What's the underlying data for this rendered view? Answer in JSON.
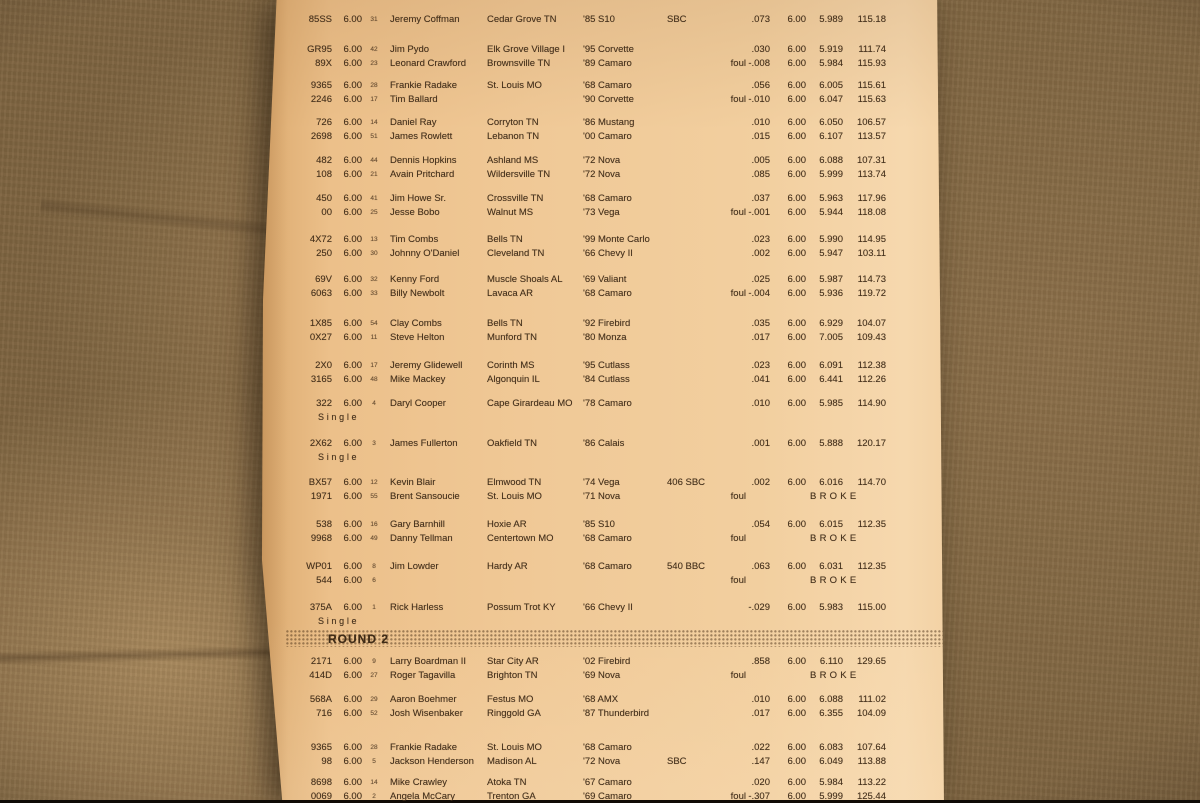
{
  "colors": {
    "paper": "#f0c997",
    "fabric": "#7d6340",
    "ink": "#46301c"
  },
  "sheet": {
    "labels": {
      "single": "Single",
      "foul": "foul",
      "broke": "BROKE"
    },
    "rounds": [
      {
        "label": "",
        "pairs": [
          {
            "lines": [
              {
                "car": "85SS",
                "dial": "6.00",
                "seed": "31",
                "name": "Jeremy Coffman",
                "city": "Cedar Grove TN",
                "model": "'85 S10",
                "engine": "SBC",
                "rt": ".073",
                "dial2": "6.00",
                "et": "5.989",
                "mph": "115.18"
              }
            ]
          },
          {
            "lines": [
              {
                "car": "GR95",
                "dial": "6.00",
                "seed": "42",
                "name": "Jim Pydo",
                "city": "Elk Grove Village I",
                "model": "'95 Corvette",
                "rt": ".030",
                "dial2": "6.00",
                "et": "5.919",
                "mph": "111.74"
              },
              {
                "car": "89X",
                "dial": "6.00",
                "seed": "23",
                "name": "Leonard Crawford",
                "city": "Brownsville TN",
                "model": "'89 Camaro",
                "foul": true,
                "rt": "-.008",
                "dial2": "6.00",
                "et": "5.984",
                "mph": "115.93"
              }
            ]
          },
          {
            "lines": [
              {
                "car": "9365",
                "dial": "6.00",
                "seed": "28",
                "name": "Frankie Radake",
                "city": "St. Louis MO",
                "model": "'68 Camaro",
                "rt": ".056",
                "dial2": "6.00",
                "et": "6.005",
                "mph": "115.61"
              },
              {
                "car": "2246",
                "dial": "6.00",
                "seed": "17",
                "name": "Tim Ballard",
                "model": "'90 Corvette",
                "foul": true,
                "rt": "-.010",
                "dial2": "6.00",
                "et": "6.047",
                "mph": "115.63"
              }
            ]
          },
          {
            "lines": [
              {
                "car": "726",
                "dial": "6.00",
                "seed": "14",
                "name": "Daniel Ray",
                "city": "Corryton TN",
                "model": "'86 Mustang",
                "rt": ".010",
                "dial2": "6.00",
                "et": "6.050",
                "mph": "106.57"
              },
              {
                "car": "2698",
                "dial": "6.00",
                "seed": "51",
                "name": "James Rowlett",
                "city": "Lebanon TN",
                "model": "'00 Camaro",
                "rt": ".015",
                "dial2": "6.00",
                "et": "6.107",
                "mph": "113.57"
              }
            ]
          },
          {
            "lines": [
              {
                "car": "482",
                "dial": "6.00",
                "seed": "44",
                "name": "Dennis Hopkins",
                "city": "Ashland MS",
                "model": "'72 Nova",
                "rt": ".005",
                "dial2": "6.00",
                "et": "6.088",
                "mph": "107.31"
              },
              {
                "car": "108",
                "dial": "6.00",
                "seed": "21",
                "name": "Avain Pritchard",
                "city": "Wildersville TN",
                "model": "'72 Nova",
                "rt": ".085",
                "dial2": "6.00",
                "et": "5.999",
                "mph": "113.74"
              }
            ]
          },
          {
            "lines": [
              {
                "car": "450",
                "dial": "6.00",
                "seed": "41",
                "name": "Jim Howe Sr.",
                "city": "Crossville TN",
                "model": "'68 Camaro",
                "rt": ".037",
                "dial2": "6.00",
                "et": "5.963",
                "mph": "117.96"
              },
              {
                "car": "00",
                "dial": "6.00",
                "seed": "25",
                "name": "Jesse Bobo",
                "city": "Walnut MS",
                "model": "'73 Vega",
                "foul": true,
                "rt": "-.001",
                "dial2": "6.00",
                "et": "5.944",
                "mph": "118.08"
              }
            ]
          },
          {
            "lines": [
              {
                "car": "4X72",
                "dial": "6.00",
                "seed": "13",
                "name": "Tim Combs",
                "city": "Bells TN",
                "model": "'99 Monte Carlo",
                "rt": ".023",
                "dial2": "6.00",
                "et": "5.990",
                "mph": "114.95"
              },
              {
                "car": "250",
                "dial": "6.00",
                "seed": "30",
                "name": "Johnny O'Daniel",
                "city": "Cleveland TN",
                "model": "'66 Chevy II",
                "rt": ".002",
                "dial2": "6.00",
                "et": "5.947",
                "mph": "103.11"
              }
            ]
          },
          {
            "lines": [
              {
                "car": "69V",
                "dial": "6.00",
                "seed": "32",
                "name": "Kenny Ford",
                "city": "Muscle Shoals AL",
                "model": "'69 Valiant",
                "rt": ".025",
                "dial2": "6.00",
                "et": "5.987",
                "mph": "114.73"
              },
              {
                "car": "6063",
                "dial": "6.00",
                "seed": "33",
                "name": "Billy Newbolt",
                "city": "Lavaca AR",
                "model": "'68 Camaro",
                "foul": true,
                "rt": "-.004",
                "dial2": "6.00",
                "et": "5.936",
                "mph": "119.72"
              }
            ]
          },
          {
            "lines": [
              {
                "car": "1X85",
                "dial": "6.00",
                "seed": "54",
                "name": "Clay Combs",
                "city": "Bells TN",
                "model": "'92 Firebird",
                "rt": ".035",
                "dial2": "6.00",
                "et": "6.929",
                "mph": "104.07"
              },
              {
                "car": "0X27",
                "dial": "6.00",
                "seed": "11",
                "name": "Steve Helton",
                "city": "Munford TN",
                "model": "'80 Monza",
                "rt": ".017",
                "dial2": "6.00",
                "et": "7.005",
                "mph": "109.43"
              }
            ]
          },
          {
            "lines": [
              {
                "car": "2X0",
                "dial": "6.00",
                "seed": "17",
                "name": "Jeremy Glidewell",
                "city": "Corinth MS",
                "model": "'95 Cutlass",
                "rt": ".023",
                "dial2": "6.00",
                "et": "6.091",
                "mph": "112.38"
              },
              {
                "car": "3165",
                "dial": "6.00",
                "seed": "48",
                "name": "Mike Mackey",
                "city": "Algonquin IL",
                "model": "'84 Cutlass",
                "rt": ".041",
                "dial2": "6.00",
                "et": "6.441",
                "mph": "112.26"
              }
            ]
          },
          {
            "single": true,
            "lines": [
              {
                "car": "322",
                "dial": "6.00",
                "seed": "4",
                "name": "Daryl Cooper",
                "city": "Cape Girardeau MO",
                "model": "'78 Camaro",
                "rt": ".010",
                "dial2": "6.00",
                "et": "5.985",
                "mph": "114.90"
              }
            ]
          },
          {
            "single": true,
            "lines": [
              {
                "car": "2X62",
                "dial": "6.00",
                "seed": "3",
                "name": "James Fullerton",
                "city": "Oakfield TN",
                "model": "'86 Calais",
                "rt": ".001",
                "dial2": "6.00",
                "et": "5.888",
                "mph": "120.17"
              }
            ]
          },
          {
            "lines": [
              {
                "car": "BX57",
                "dial": "6.00",
                "seed": "12",
                "name": "Kevin Blair",
                "city": "Elmwood TN",
                "model": "'74 Vega",
                "engine": "406 SBC",
                "rt": ".002",
                "dial2": "6.00",
                "et": "6.016",
                "mph": "114.70"
              },
              {
                "car": "1971",
                "dial": "6.00",
                "seed": "55",
                "name": "Brent Sansoucie",
                "city": "St. Louis MO",
                "model": "'71 Nova",
                "foul": true,
                "broke": true
              }
            ]
          },
          {
            "lines": [
              {
                "car": "538",
                "dial": "6.00",
                "seed": "16",
                "name": "Gary Barnhill",
                "city": "Hoxie AR",
                "model": "'85 S10",
                "rt": ".054",
                "dial2": "6.00",
                "et": "6.015",
                "mph": "112.35"
              },
              {
                "car": "9968",
                "dial": "6.00",
                "seed": "49",
                "name": "Danny Tellman",
                "city": "Centertown MO",
                "model": "'68 Camaro",
                "foul": true,
                "broke": true
              }
            ]
          },
          {
            "lines": [
              {
                "car": "WP01",
                "dial": "6.00",
                "seed": "8",
                "name": "Jim Lowder",
                "city": "Hardy AR",
                "model": "'68 Camaro",
                "engine": "540 BBC",
                "rt": ".063",
                "dial2": "6.00",
                "et": "6.031",
                "mph": "112.35"
              },
              {
                "car": "544",
                "dial": "6.00",
                "seed": "6",
                "foul": true,
                "broke": true
              }
            ]
          },
          {
            "single": true,
            "lines": [
              {
                "car": "375A",
                "dial": "6.00",
                "seed": "1",
                "name": "Rick Harless",
                "city": "Possum Trot KY",
                "model": "'66 Chevy II",
                "rt": "-.029",
                "dial2": "6.00",
                "et": "5.983",
                "mph": "115.00"
              }
            ]
          }
        ]
      },
      {
        "label": "ROUND 2",
        "pairs": [
          {
            "lines": [
              {
                "car": "2171",
                "dial": "6.00",
                "seed": "9",
                "name": "Larry Boardman II",
                "city": "Star City AR",
                "model": "'02 Firebird",
                "rt": ".858",
                "dial2": "6.00",
                "et": "6.110",
                "mph": "129.65"
              },
              {
                "car": "414D",
                "dial": "6.00",
                "seed": "27",
                "name": "Roger Tagavilla",
                "city": "Brighton TN",
                "model": "'69 Nova",
                "foul": true,
                "broke": true
              }
            ]
          },
          {
            "lines": [
              {
                "car": "568A",
                "dial": "6.00",
                "seed": "29",
                "name": "Aaron Boehmer",
                "city": "Festus MO",
                "model": "'68 AMX",
                "rt": ".010",
                "dial2": "6.00",
                "et": "6.088",
                "mph": "111.02"
              },
              {
                "car": "716",
                "dial": "6.00",
                "seed": "52",
                "name": "Josh Wisenbaker",
                "city": "Ringgold GA",
                "model": "'87 Thunderbird",
                "rt": ".017",
                "dial2": "6.00",
                "et": "6.355",
                "mph": "104.09"
              }
            ]
          },
          {
            "lines": [
              {
                "car": "9365",
                "dial": "6.00",
                "seed": "28",
                "name": "Frankie Radake",
                "city": "St. Louis MO",
                "model": "'68 Camaro",
                "rt": ".022",
                "dial2": "6.00",
                "et": "6.083",
                "mph": "107.64"
              },
              {
                "car": "98",
                "dial": "6.00",
                "seed": "5",
                "name": "Jackson Henderson",
                "city": "Madison AL",
                "model": "'72 Nova",
                "engine": "SBC",
                "rt": ".147",
                "dial2": "6.00",
                "et": "6.049",
                "mph": "113.88"
              }
            ]
          },
          {
            "lines": [
              {
                "car": "8698",
                "dial": "6.00",
                "seed": "14",
                "name": "Mike Crawley",
                "city": "Atoka TN",
                "model": "'67 Camaro",
                "rt": ".020",
                "dial2": "6.00",
                "et": "5.984",
                "mph": "113.22"
              },
              {
                "car": "0069",
                "dial": "6.00",
                "seed": "2",
                "name": "Angela McCary",
                "city": "Trenton GA",
                "model": "'69 Camaro",
                "foul": true,
                "rt": "-.307",
                "dial2": "6.00",
                "et": "5.999",
                "mph": "125.44"
              }
            ]
          }
        ]
      }
    ]
  }
}
